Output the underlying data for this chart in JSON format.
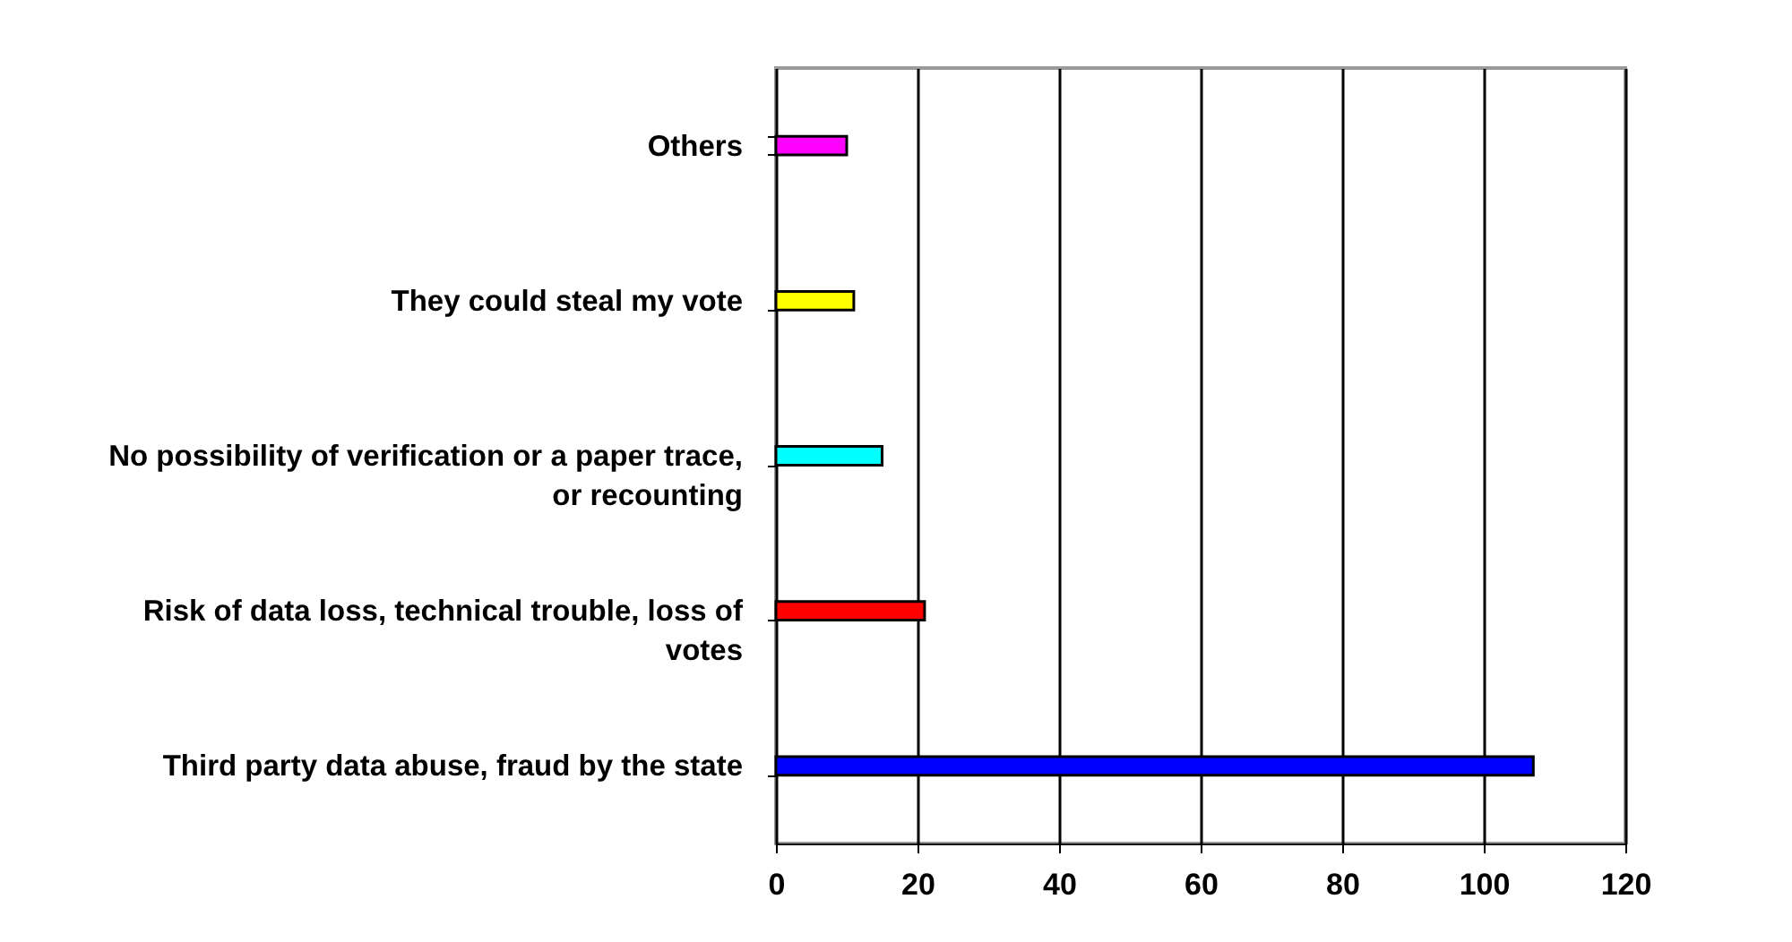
{
  "chart_data": {
    "type": "bar",
    "orientation": "horizontal",
    "categories": [
      "Others",
      "They could steal my vote",
      "No possibility of verification or a paper trace, or recounting",
      "Risk of data loss, technical trouble, loss of votes",
      "Third party data abuse, fraud by the state"
    ],
    "values": [
      10,
      11,
      15,
      21,
      107
    ],
    "colors": [
      "#ff00ff",
      "#ffff00",
      "#00ffff",
      "#ff0000",
      "#0000ff"
    ],
    "xlim": [
      0,
      120
    ],
    "xticks": [
      0,
      20,
      40,
      60,
      80,
      100,
      120
    ],
    "grid": "x"
  }
}
